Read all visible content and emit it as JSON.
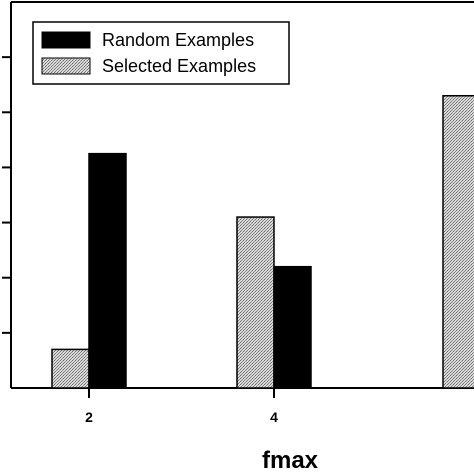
{
  "chart_data": {
    "type": "bar",
    "title": "",
    "xlabel": "fmax",
    "ylabel": "",
    "categories": [
      "2",
      "4",
      ""
    ],
    "x_tick_labels": [
      "2",
      "4"
    ],
    "ylim": [
      0,
      7
    ],
    "y_tick_values": [
      1,
      2,
      3,
      4,
      5,
      6
    ],
    "legend_position": "top-left",
    "series": [
      {
        "name": "Selected Examples",
        "values": [
          0.7,
          3.1,
          5.3
        ],
        "style": "stippled",
        "color": "#c9c9c9"
      },
      {
        "name": "Random Examples",
        "values": [
          4.25,
          2.2,
          null
        ],
        "style": "solid",
        "color": "#000000"
      }
    ]
  }
}
